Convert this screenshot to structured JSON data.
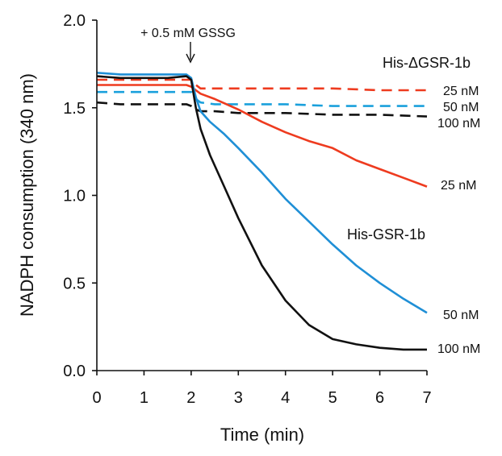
{
  "chart_data": {
    "type": "line",
    "title": "",
    "xlabel": "Time (min)",
    "ylabel": "NADPH consumption (340 nm)",
    "xlim": [
      0,
      7
    ],
    "ylim": [
      0,
      2.0
    ],
    "x_ticks": [
      0,
      1,
      2,
      3,
      4,
      5,
      6,
      7
    ],
    "y_ticks": [
      0.0,
      0.5,
      1.0,
      1.5,
      2.0
    ],
    "x_tick_labels": [
      "0",
      "1",
      "2",
      "3",
      "4",
      "5",
      "6",
      "7"
    ],
    "y_tick_labels": [
      "0.0",
      "0.5",
      "1.0",
      "1.5",
      "2.0"
    ],
    "grid": false,
    "annotation": {
      "text": "+ 0.5 mM GSSG",
      "at_x": 2.0
    },
    "group_labels": {
      "dashed": "His-ΔGSR-1b",
      "solid": "His-GSR-1b"
    },
    "series": [
      {
        "name": "His-ΔGSR-1b 25 nM",
        "group": "dashed",
        "label": "25 nM",
        "color": "#ee3b1f",
        "x": [
          0,
          0.5,
          1,
          1.5,
          1.9,
          2.0,
          2.1,
          2.2,
          2.5,
          3,
          4,
          5,
          6,
          7
        ],
        "y": [
          1.66,
          1.66,
          1.66,
          1.66,
          1.66,
          1.66,
          1.63,
          1.61,
          1.61,
          1.61,
          1.61,
          1.61,
          1.6,
          1.6
        ]
      },
      {
        "name": "His-ΔGSR-1b 50 nM",
        "group": "dashed",
        "label": "50 nM",
        "color": "#1aa0dc",
        "x": [
          0,
          0.5,
          1,
          1.5,
          1.9,
          2.0,
          2.1,
          2.2,
          2.5,
          3,
          4,
          5,
          6,
          7
        ],
        "y": [
          1.59,
          1.59,
          1.59,
          1.59,
          1.59,
          1.59,
          1.55,
          1.53,
          1.52,
          1.52,
          1.52,
          1.51,
          1.51,
          1.51
        ]
      },
      {
        "name": "His-ΔGSR-1b 100 nM",
        "group": "dashed",
        "label": "100 nM",
        "color": "#111111",
        "x": [
          0,
          0.5,
          1,
          1.5,
          1.9,
          2.0,
          2.1,
          2.2,
          2.5,
          3,
          4,
          5,
          6,
          7
        ],
        "y": [
          1.53,
          1.52,
          1.52,
          1.52,
          1.52,
          1.51,
          1.49,
          1.48,
          1.48,
          1.47,
          1.47,
          1.46,
          1.46,
          1.45
        ]
      },
      {
        "name": "His-GSR-1b 25 nM",
        "group": "solid",
        "label": "25 nM",
        "color": "#ee3b1f",
        "x": [
          0,
          0.5,
          1,
          1.5,
          1.9,
          2.0,
          2.1,
          2.2,
          2.5,
          3,
          3.5,
          4,
          4.5,
          5,
          5.5,
          6,
          6.5,
          7
        ],
        "y": [
          1.63,
          1.63,
          1.63,
          1.63,
          1.63,
          1.62,
          1.6,
          1.58,
          1.55,
          1.49,
          1.42,
          1.36,
          1.31,
          1.27,
          1.2,
          1.15,
          1.1,
          1.05
        ]
      },
      {
        "name": "His-GSR-1b 50 nM",
        "group": "solid",
        "label": "50 nM",
        "color": "#1f8fd6",
        "x": [
          0,
          0.5,
          1,
          1.5,
          1.9,
          2.0,
          2.1,
          2.2,
          2.4,
          2.7,
          3,
          3.5,
          4,
          4.5,
          5,
          5.5,
          6,
          6.5,
          7
        ],
        "y": [
          1.7,
          1.69,
          1.69,
          1.69,
          1.69,
          1.67,
          1.56,
          1.48,
          1.42,
          1.35,
          1.27,
          1.13,
          0.98,
          0.85,
          0.72,
          0.6,
          0.5,
          0.41,
          0.33
        ]
      },
      {
        "name": "His-GSR-1b 100 nM",
        "group": "solid",
        "label": "100 nM",
        "color": "#111111",
        "x": [
          0,
          0.5,
          1,
          1.5,
          1.9,
          2.0,
          2.1,
          2.2,
          2.4,
          2.7,
          3,
          3.5,
          4,
          4.5,
          5,
          5.5,
          6,
          6.5,
          7
        ],
        "y": [
          1.68,
          1.67,
          1.67,
          1.67,
          1.68,
          1.66,
          1.5,
          1.38,
          1.23,
          1.05,
          0.87,
          0.6,
          0.4,
          0.26,
          0.18,
          0.15,
          0.13,
          0.12,
          0.12
        ]
      }
    ]
  }
}
